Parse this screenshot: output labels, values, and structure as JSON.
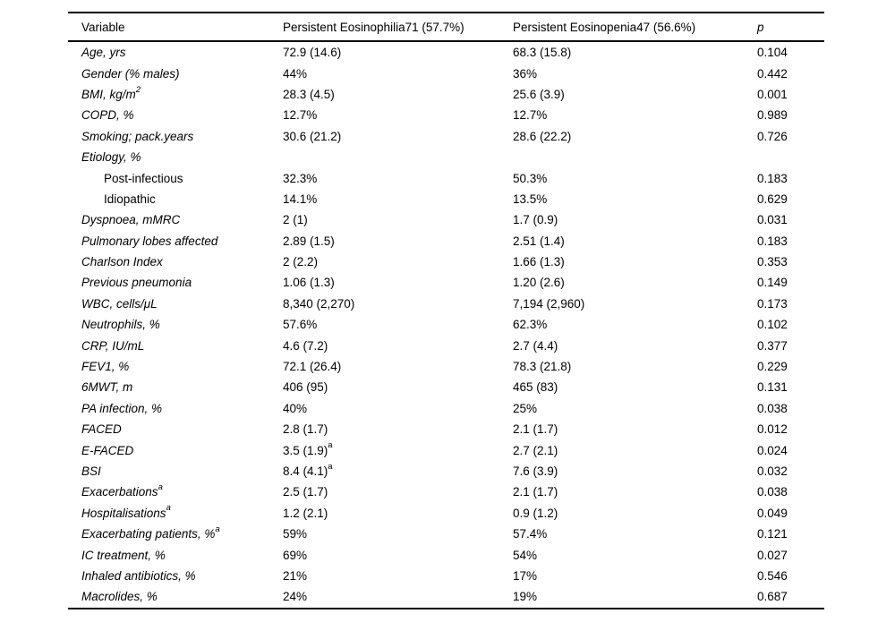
{
  "table": {
    "header": {
      "col_variable": "Variable",
      "col_group1": "Persistent Eosinophilia71 (57.7%)",
      "col_group2": "Persistent Eosinopenia47 (56.6%)",
      "col_p": "p"
    },
    "rows": [
      {
        "label": "Age, yrs",
        "label_sup": "",
        "italic": true,
        "indent": false,
        "v1": "72.9 (14.6)",
        "v1_sup": "",
        "v2": "68.3 (15.8)",
        "p": "0.104"
      },
      {
        "label": "Gender (% males)",
        "label_sup": "",
        "italic": true,
        "indent": false,
        "v1": "44%",
        "v1_sup": "",
        "v2": "36%",
        "p": "0.442"
      },
      {
        "label": "BMI, kg/m",
        "label_sup": "2",
        "italic": true,
        "indent": false,
        "v1": "28.3 (4.5)",
        "v1_sup": "",
        "v2": "25.6 (3.9)",
        "p": "0.001"
      },
      {
        "label": "COPD, %",
        "label_sup": "",
        "italic": true,
        "indent": false,
        "v1": "12.7%",
        "v1_sup": "",
        "v2": "12.7%",
        "p": "0.989"
      },
      {
        "label": "Smoking; pack.years",
        "label_sup": "",
        "italic": true,
        "indent": false,
        "v1": "30.6 (21.2)",
        "v1_sup": "",
        "v2": "28.6 (22.2)",
        "p": "0.726"
      },
      {
        "label": "Etiology, %",
        "label_sup": "",
        "italic": true,
        "indent": false,
        "v1": "",
        "v1_sup": "",
        "v2": "",
        "p": ""
      },
      {
        "label": "Post-infectious",
        "label_sup": "",
        "italic": false,
        "indent": true,
        "v1": "32.3%",
        "v1_sup": "",
        "v2": "50.3%",
        "p": "0.183"
      },
      {
        "label": "Idiopathic",
        "label_sup": "",
        "italic": false,
        "indent": true,
        "v1": "14.1%",
        "v1_sup": "",
        "v2": "13.5%",
        "p": "0.629"
      },
      {
        "label": "Dyspnoea, mMRC",
        "label_sup": "",
        "italic": true,
        "indent": false,
        "v1": "2 (1)",
        "v1_sup": "",
        "v2": "1.7 (0.9)",
        "p": "0.031"
      },
      {
        "label": "Pulmonary lobes affected",
        "label_sup": "",
        "italic": true,
        "indent": false,
        "v1": "2.89 (1.5)",
        "v1_sup": "",
        "v2": "2.51 (1.4)",
        "p": "0.183"
      },
      {
        "label": "Charlson Index",
        "label_sup": "",
        "italic": true,
        "indent": false,
        "v1": "2 (2.2)",
        "v1_sup": "",
        "v2": "1.66 (1.3)",
        "p": "0.353"
      },
      {
        "label": "Previous pneumonia",
        "label_sup": "",
        "italic": true,
        "indent": false,
        "v1": "1.06 (1.3)",
        "v1_sup": "",
        "v2": "1.20 (2.6)",
        "p": "0.149"
      },
      {
        "label": "WBC, cells/μL",
        "label_sup": "",
        "italic": true,
        "indent": false,
        "v1": "8,340 (2,270)",
        "v1_sup": "",
        "v2": "7,194 (2,960)",
        "p": "0.173"
      },
      {
        "label": "Neutrophils, %",
        "label_sup": "",
        "italic": true,
        "indent": false,
        "v1": "57.6%",
        "v1_sup": "",
        "v2": "62.3%",
        "p": "0.102"
      },
      {
        "label": "CRP, IU/mL",
        "label_sup": "",
        "italic": true,
        "indent": false,
        "v1": "4.6 (7.2)",
        "v1_sup": "",
        "v2": "2.7 (4.4)",
        "p": "0.377"
      },
      {
        "label": "FEV1, %",
        "label_sup": "",
        "italic": true,
        "indent": false,
        "v1": "72.1 (26.4)",
        "v1_sup": "",
        "v2": "78.3 (21.8)",
        "p": "0.229"
      },
      {
        "label": "6MWT, m",
        "label_sup": "",
        "italic": true,
        "indent": false,
        "v1": "406 (95)",
        "v1_sup": "",
        "v2": "465 (83)",
        "p": "0.131"
      },
      {
        "label": "PA infection, %",
        "label_sup": "",
        "italic": true,
        "indent": false,
        "v1": "40%",
        "v1_sup": "",
        "v2": "25%",
        "p": "0.038"
      },
      {
        "label": "FACED",
        "label_sup": "",
        "italic": true,
        "indent": false,
        "v1": "2.8 (1.7)",
        "v1_sup": "",
        "v2": "2.1 (1.7)",
        "p": "0.012"
      },
      {
        "label": "E-FACED",
        "label_sup": "",
        "italic": true,
        "indent": false,
        "v1": "3.5 (1.9)",
        "v1_sup": "a",
        "v2": "2.7 (2.1)",
        "p": "0.024"
      },
      {
        "label": "BSI",
        "label_sup": "",
        "italic": true,
        "indent": false,
        "v1": "8.4 (4.1)",
        "v1_sup": "a",
        "v2": "7.6 (3.9)",
        "p": "0.032"
      },
      {
        "label": "Exacerbations",
        "label_sup": "a",
        "italic": true,
        "indent": false,
        "v1": "2.5 (1.7)",
        "v1_sup": "",
        "v2": "2.1 (1.7)",
        "p": "0.038"
      },
      {
        "label": "Hospitalisations",
        "label_sup": "a",
        "italic": true,
        "indent": false,
        "v1": "1.2 (2.1)",
        "v1_sup": "",
        "v2": "0.9 (1.2)",
        "p": "0.049"
      },
      {
        "label": "Exacerbating patients, %",
        "label_sup": "a",
        "italic": true,
        "indent": false,
        "v1": "59%",
        "v1_sup": "",
        "v2": "57.4%",
        "p": "0.121"
      },
      {
        "label": "IC treatment, %",
        "label_sup": "",
        "italic": true,
        "indent": false,
        "v1": "69%",
        "v1_sup": "",
        "v2": "54%",
        "p": "0.027"
      },
      {
        "label": "Inhaled antibiotics, %",
        "label_sup": "",
        "italic": true,
        "indent": false,
        "v1": "21%",
        "v1_sup": "",
        "v2": "17%",
        "p": "0.546"
      },
      {
        "label": "Macrolides, %",
        "label_sup": "",
        "italic": true,
        "indent": false,
        "v1": "24%",
        "v1_sup": "",
        "v2": "19%",
        "p": "0.687"
      }
    ]
  }
}
